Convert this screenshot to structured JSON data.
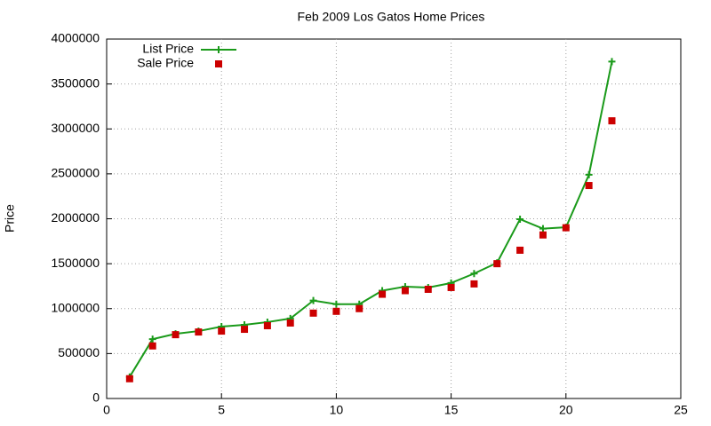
{
  "chart_data": {
    "type": "line",
    "title": "Feb 2009 Los Gatos Home Prices",
    "y_label": "Price",
    "x": [
      1,
      2,
      3,
      4,
      5,
      6,
      7,
      8,
      9,
      10,
      11,
      12,
      13,
      14,
      15,
      16,
      17,
      18,
      19,
      20,
      21,
      22
    ],
    "series": [
      {
        "name": "List Price",
        "color": "#1a9a1a",
        "marker": "plus",
        "line": true,
        "values": [
          240000,
          660000,
          720000,
          750000,
          800000,
          820000,
          850000,
          890000,
          1090000,
          1050000,
          1050000,
          1200000,
          1245000,
          1235000,
          1285000,
          1390000,
          1510000,
          1995000,
          1890000,
          1905000,
          2490000,
          3750000
        ]
      },
      {
        "name": "Sale Price",
        "color": "#cc0000",
        "marker": "square",
        "line": false,
        "values": [
          220000,
          585000,
          710000,
          740000,
          750000,
          770000,
          810000,
          840000,
          950000,
          970000,
          1000000,
          1160000,
          1200000,
          1215000,
          1235000,
          1275000,
          1500000,
          1650000,
          1820000,
          1900000,
          2370000,
          3090000
        ]
      }
    ],
    "xlim": [
      0,
      25
    ],
    "xticks": [
      0,
      5,
      10,
      15,
      20,
      25
    ],
    "ylim": [
      0,
      4000000
    ],
    "yticks": [
      0,
      500000,
      1000000,
      1500000,
      2000000,
      2500000,
      3000000,
      3500000,
      4000000
    ],
    "grid": true,
    "legend": "top-left"
  }
}
